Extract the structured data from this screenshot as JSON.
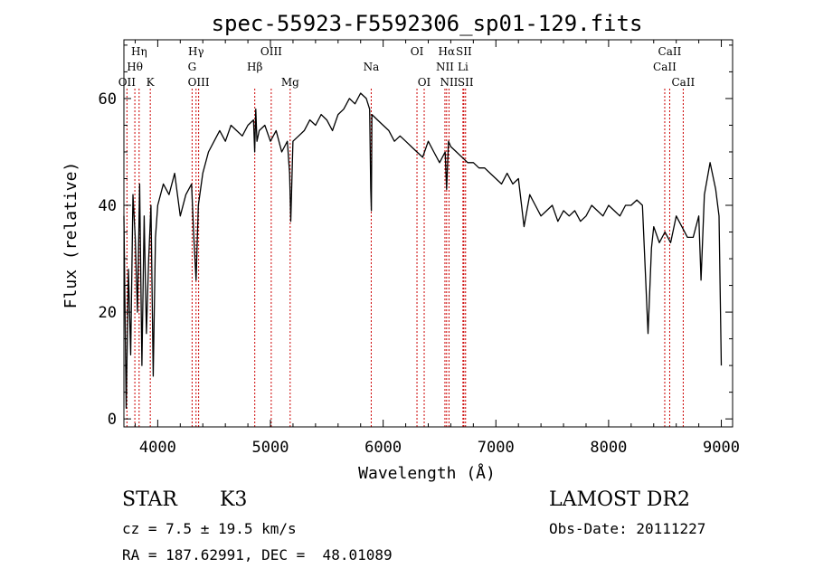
{
  "chart_data": {
    "type": "line",
    "title": "spec-55923-F5592306_sp01-129.fits",
    "xlabel": "Wavelength (Å)",
    "ylabel": "Flux (relative)",
    "xlim": [
      3700,
      9100
    ],
    "ylim": [
      -1.5,
      71
    ],
    "x_ticks": [
      4000,
      5000,
      6000,
      7000,
      8000,
      9000
    ],
    "y_ticks": [
      0,
      20,
      40,
      60
    ],
    "grid": false,
    "series": [
      {
        "x": [
          3700,
          3720,
          3740,
          3760,
          3780,
          3800,
          3820,
          3840,
          3860,
          3880,
          3900,
          3920,
          3940,
          3960,
          3980,
          4000,
          4050,
          4100,
          4150,
          4200,
          4250,
          4300,
          4320,
          4340,
          4360,
          4400,
          4450,
          4500,
          4550,
          4600,
          4650,
          4700,
          4750,
          4800,
          4850,
          4860,
          4870,
          4880,
          4900,
          4950,
          5000,
          5050,
          5100,
          5150,
          5170,
          5180,
          5200,
          5250,
          5300,
          5350,
          5400,
          5450,
          5500,
          5550,
          5600,
          5650,
          5700,
          5750,
          5800,
          5850,
          5880,
          5890,
          5895,
          5900,
          5950,
          6000,
          6050,
          6100,
          6150,
          6200,
          6250,
          6300,
          6350,
          6400,
          6450,
          6500,
          6550,
          6563,
          6580,
          6600,
          6650,
          6700,
          6750,
          6800,
          6850,
          6900,
          6950,
          7000,
          7050,
          7100,
          7150,
          7200,
          7250,
          7300,
          7350,
          7400,
          7450,
          7500,
          7550,
          7600,
          7650,
          7700,
          7750,
          7800,
          7850,
          7900,
          7950,
          8000,
          8050,
          8100,
          8150,
          8200,
          8250,
          8300,
          8350,
          8380,
          8400,
          8450,
          8500,
          8550,
          8600,
          8650,
          8700,
          8750,
          8800,
          8820,
          8850,
          8900,
          8950,
          8980,
          9000
        ],
        "y": [
          38,
          2,
          28,
          12,
          42,
          34,
          20,
          44,
          10,
          38,
          16,
          30,
          40,
          8,
          34,
          40,
          44,
          42,
          46,
          38,
          42,
          44,
          34,
          26,
          40,
          46,
          50,
          52,
          54,
          52,
          55,
          54,
          53,
          55,
          56,
          50,
          58,
          52,
          54,
          55,
          52,
          54,
          50,
          52,
          46,
          37,
          52,
          53,
          54,
          56,
          55,
          57,
          56,
          54,
          57,
          58,
          60,
          59,
          61,
          60,
          58,
          43,
          39,
          57,
          56,
          55,
          54,
          52,
          53,
          52,
          51,
          50,
          49,
          52,
          50,
          48,
          50,
          43,
          52,
          51,
          50,
          49,
          48,
          48,
          47,
          47,
          46,
          45,
          44,
          46,
          44,
          45,
          36,
          42,
          40,
          38,
          39,
          40,
          37,
          39,
          38,
          39,
          37,
          38,
          40,
          39,
          38,
          40,
          39,
          38,
          40,
          40,
          41,
          40,
          16,
          32,
          36,
          33,
          35,
          33,
          38,
          36,
          34,
          34,
          38,
          26,
          42,
          48,
          43,
          38,
          10
        ]
      }
    ],
    "lines": [
      {
        "name": "OII",
        "x": 3727,
        "row": 3
      },
      {
        "name": "Hη",
        "x": 3835,
        "row": 1
      },
      {
        "name": "Hθ",
        "x": 3797,
        "row": 2
      },
      {
        "name": "K",
        "x": 3934,
        "row": 3
      },
      {
        "name": "Hγ",
        "x": 4340,
        "row": 1
      },
      {
        "name": "G",
        "x": 4305,
        "row": 2
      },
      {
        "name": "OIII",
        "x": 4363,
        "row": 3
      },
      {
        "name": "OIII",
        "x": 5007,
        "row": 1
      },
      {
        "name": "Hβ",
        "x": 4861,
        "row": 2
      },
      {
        "name": "Mg",
        "x": 5175,
        "row": 3
      },
      {
        "name": "Na",
        "x": 5894,
        "row": 2
      },
      {
        "name": "OI",
        "x": 6300,
        "row": 1
      },
      {
        "name": "OI",
        "x": 6364,
        "row": 3
      },
      {
        "name": "Hα",
        "x": 6563,
        "row": 1
      },
      {
        "name": "SII",
        "x": 6716,
        "row": 1
      },
      {
        "name": "NII",
        "x": 6548,
        "row": 2
      },
      {
        "name": "Li",
        "x": 6708,
        "row": 2
      },
      {
        "name": "NII",
        "x": 6584,
        "row": 3
      },
      {
        "name": "SII",
        "x": 6731,
        "row": 3
      },
      {
        "name": "CaII",
        "x": 8542,
        "row": 1
      },
      {
        "name": "CaII",
        "x": 8498,
        "row": 2
      },
      {
        "name": "CaII",
        "x": 8662,
        "row": 3
      }
    ]
  },
  "info": {
    "class": "STAR",
    "subclass": "K3",
    "survey": "LAMOST DR2",
    "cz": "cz = 7.5 ± 19.5 km/s",
    "obs_date": "Obs-Date: 20111227",
    "coords": "RA = 187.62991, DEC =  48.01089"
  },
  "colors": {
    "line": "#000000",
    "marker": "#cc0000"
  }
}
